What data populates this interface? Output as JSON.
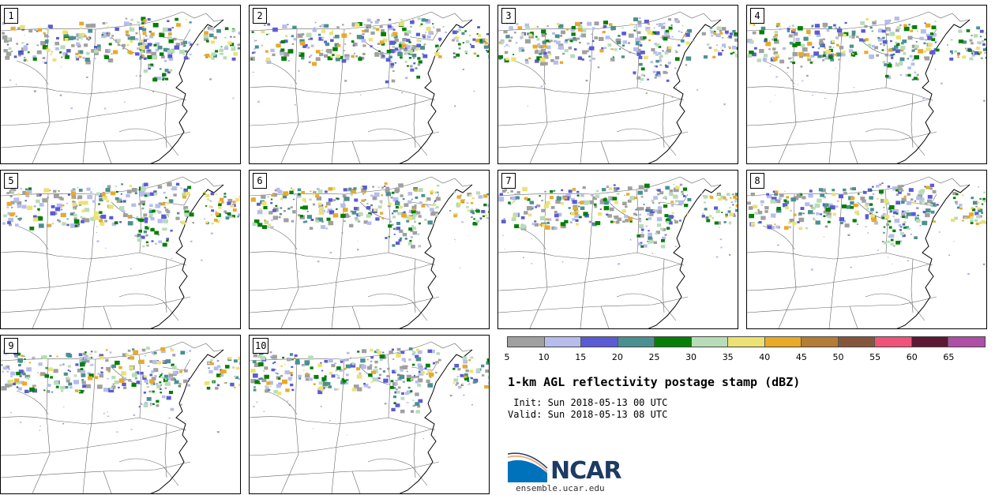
{
  "panels": [
    {
      "label": "1"
    },
    {
      "label": "2"
    },
    {
      "label": "3"
    },
    {
      "label": "4"
    },
    {
      "label": "5"
    },
    {
      "label": "6"
    },
    {
      "label": "7"
    },
    {
      "label": "8"
    },
    {
      "label": "9"
    },
    {
      "label": "10"
    }
  ],
  "colorbar": {
    "colors": [
      "#a0a0a0",
      "#b6bdec",
      "#5b5bd6",
      "#4b9090",
      "#057f05",
      "#b8dcb8",
      "#ece274",
      "#e8aa28",
      "#b47c35",
      "#86563c",
      "#ef5478",
      "#5e1834",
      "#b04fa6"
    ],
    "ticks": [
      "5",
      "10",
      "15",
      "20",
      "25",
      "30",
      "35",
      "40",
      "45",
      "50",
      "55",
      "60",
      "65"
    ]
  },
  "title": "1-km AGL reflectivity postage stamp (dBZ)",
  "init": " Init: Sun 2018-05-13 00 UTC",
  "valid": "Valid: Sun 2018-05-13 08 UTC",
  "logo": {
    "text": "NCAR",
    "colors": [
      "#0072bc",
      "#1d3b63",
      "#f0b080"
    ]
  },
  "site": "ensemble.ucar.edu"
}
